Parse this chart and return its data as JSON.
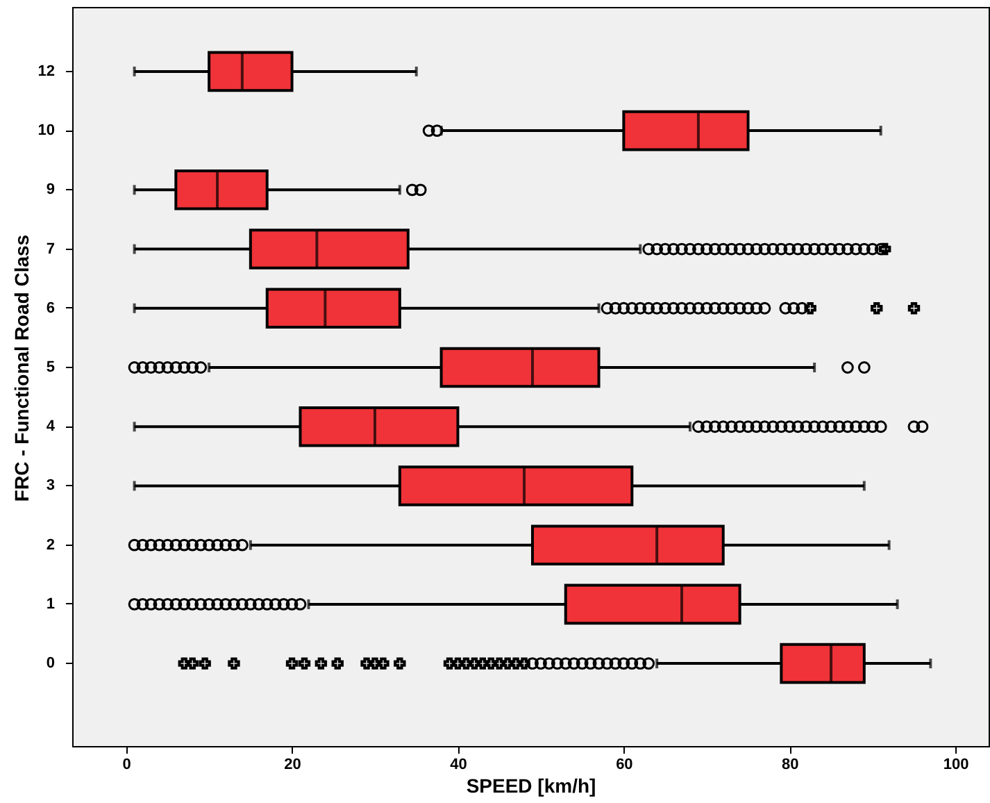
{
  "chart_data": {
    "type": "box",
    "orientation": "horizontal",
    "xlabel": "SPEED [km/h]",
    "ylabel": "FRC - Functional Road Class",
    "categories": [
      "12",
      "10",
      "9",
      "7",
      "6",
      "5",
      "4",
      "3",
      "2",
      "1",
      "0"
    ],
    "xlim": [
      -6.5,
      104
    ],
    "xticks": [
      0,
      20,
      40,
      60,
      80,
      100
    ],
    "grid": false,
    "color": "#ef3338",
    "boxes": [
      {
        "low": 1,
        "q1": 10,
        "median": 14,
        "q3": 20,
        "high": 35
      },
      {
        "low": 38,
        "q1": 60,
        "median": 69,
        "q3": 75,
        "high": 91,
        "outliers": [
          36.5,
          37.5
        ]
      },
      {
        "low": 1,
        "q1": 6,
        "median": 11,
        "q3": 17,
        "high": 33,
        "outliers": [
          34.5,
          35.5
        ]
      },
      {
        "low": 1,
        "q1": 15,
        "median": 23,
        "q3": 34,
        "high": 62,
        "outliers": [
          63,
          64,
          65,
          66,
          67,
          68,
          69,
          70,
          71,
          72,
          73,
          74,
          75,
          76,
          77,
          78,
          79,
          80,
          81,
          82,
          83,
          84,
          85,
          86,
          87,
          88,
          89,
          90,
          91
        ]
      },
      {
        "low": 1,
        "q1": 17,
        "median": 24,
        "q3": 33,
        "high": 57,
        "outliers": [
          58,
          59,
          60,
          61,
          62,
          63,
          64,
          65,
          66,
          67,
          68,
          69,
          70,
          71,
          72,
          73,
          74,
          75,
          76,
          77,
          79.5,
          80.5,
          81.5
        ]
      },
      {
        "low": 10,
        "q1": 38,
        "median": 49,
        "q3": 57,
        "high": 83,
        "outliers": [
          1,
          2,
          3,
          4,
          5,
          6,
          7,
          8,
          9,
          87,
          89
        ]
      },
      {
        "low": 1,
        "q1": 21,
        "median": 30,
        "q3": 40,
        "high": 68,
        "outliers": [
          69,
          70,
          71,
          72,
          73,
          74,
          75,
          76,
          77,
          78,
          79,
          80,
          81,
          82,
          83,
          84,
          85,
          86,
          87,
          88,
          89,
          90,
          91,
          95,
          96
        ]
      },
      {
        "low": 1,
        "q1": 33,
        "median": 48,
        "q3": 61,
        "high": 89
      },
      {
        "low": 15,
        "q1": 49,
        "median": 64,
        "q3": 72,
        "high": 92,
        "outliers": [
          1,
          2,
          3,
          4,
          5,
          6,
          7,
          8,
          9,
          10,
          11,
          12,
          13,
          14
        ]
      },
      {
        "low": 22,
        "q1": 53,
        "median": 67,
        "q3": 74,
        "high": 93,
        "outliers": [
          1,
          2,
          3,
          4,
          5,
          6,
          7,
          8,
          9,
          10,
          11,
          12,
          13,
          14,
          15,
          16,
          17,
          18,
          19,
          20,
          21
        ]
      },
      {
        "low": 64,
        "q1": 79,
        "median": 85,
        "q3": 89,
        "high": 97,
        "outliers": [
          49,
          50,
          51,
          52,
          53,
          54,
          55,
          56,
          57,
          58,
          59,
          60,
          61,
          62,
          63
        ]
      }
    ],
    "series": [
      {
        "type": "scatter",
        "marker": "cross",
        "color": "#000000",
        "x": [
          "7",
          "6",
          "6",
          "6",
          "0",
          "0",
          "0",
          "0",
          "0",
          "0",
          "0",
          "0",
          "0",
          "0",
          "0",
          "0",
          "0",
          "0",
          "0",
          "0",
          "0",
          "0",
          "0",
          "0",
          "0",
          "0"
        ],
        "values": [
          91.5,
          82.5,
          90.5,
          95,
          7,
          8,
          9.5,
          13,
          20,
          21.5,
          23.5,
          25.5,
          29,
          30,
          31,
          33,
          39,
          40,
          41,
          42,
          43,
          44,
          45,
          46,
          47,
          48
        ]
      }
    ]
  }
}
